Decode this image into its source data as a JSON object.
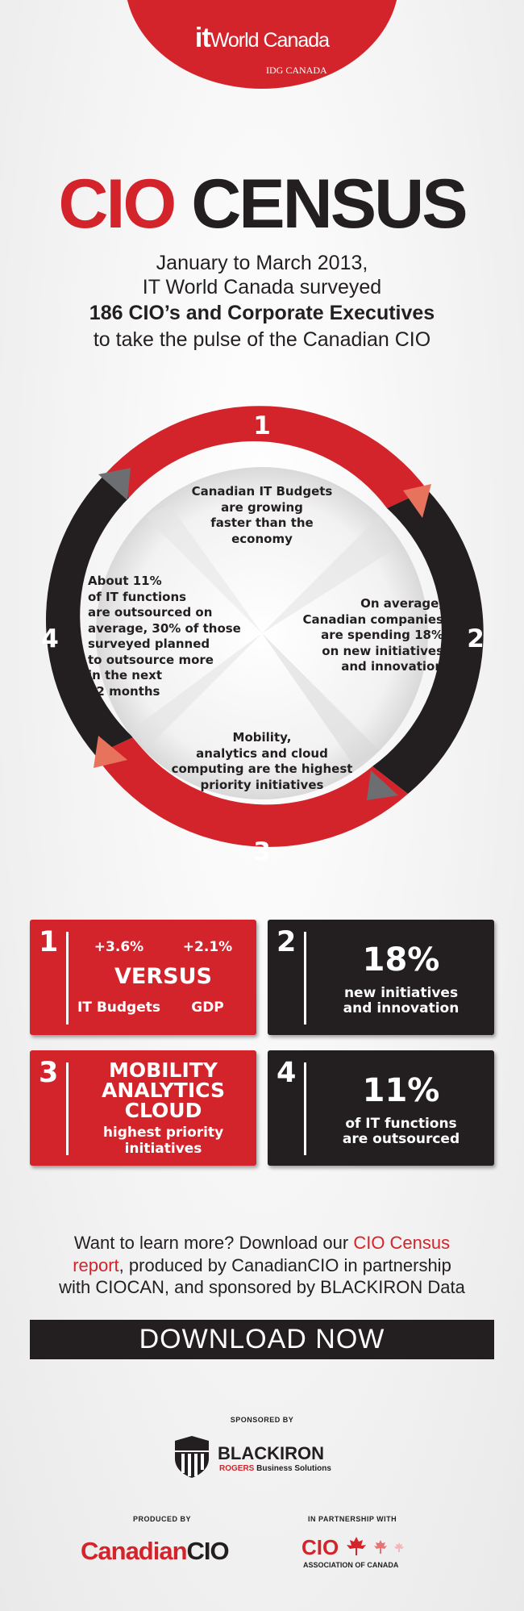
{
  "header": {
    "logo_it": "it",
    "logo_name": "World Canada",
    "logo_sub": "IDG CANADA"
  },
  "title": {
    "part1": "CIO",
    "part2": "CENSUS"
  },
  "intro": {
    "line1": "January to March 2013,",
    "line2": "IT World Canada surveyed",
    "line3": "186 CIO’s and Corporate Executives",
    "line4": "to take the pulse of the Canadian CIO"
  },
  "ring": {
    "numbers": [
      "1",
      "2",
      "3",
      "4"
    ],
    "segments": [
      {
        "lines": [
          "Canadian IT Budgets",
          "are growing",
          "faster than the",
          "economy"
        ]
      },
      {
        "lines": [
          "On average,",
          "Canadian companies",
          "are spending 18%",
          "on new initiatives",
          "and innovation"
        ]
      },
      {
        "lines": [
          "Mobility,",
          "analytics and cloud",
          "computing are the highest",
          "priority initiatives"
        ]
      },
      {
        "lines": [
          "About 11%",
          "of IT functions",
          "are outsourced on",
          "average, 30% of those",
          "surveyed planned",
          "to outsource more",
          "in the next",
          "12 months"
        ]
      }
    ],
    "colors": {
      "red": "#d3242b",
      "black": "#231f20",
      "salmon": "#e8735d"
    }
  },
  "boxes": [
    {
      "num": "1",
      "v1": "+3.6%",
      "v2": "+2.1%",
      "big": "VERSUS",
      "l1": "IT Budgets",
      "l2": "GDP"
    },
    {
      "num": "2",
      "big": "18%",
      "sub1": "new initiatives",
      "sub2": "and innovation"
    },
    {
      "num": "3",
      "b1": "MOBILITY",
      "b2": "ANALYTICS",
      "b3": "CLOUD",
      "sub1": "highest priority",
      "sub2": "initiatives"
    },
    {
      "num": "4",
      "big": "11%",
      "sub1": "of IT functions",
      "sub2": "are outsourced"
    }
  ],
  "learn_more": {
    "l1a": "Want to learn more? Download our ",
    "l1b": "CIO Census",
    "l2a": "report",
    "l2b": ", produced by CanadianCIO in partnership",
    "l3": "with CIOCAN, and sponsored by BLACKIRON Data"
  },
  "download_label": "DOWNLOAD NOW",
  "sponsors": {
    "sponsored_by": "SPONSORED BY",
    "blackiron": "BLACKIRON",
    "rogers": "ROGERS",
    "business": "Business Solutions",
    "produced_by": "PRODUCED BY",
    "canadian": "Canadian",
    "cio": "CIO",
    "partnership": "IN PARTNERSHIP WITH",
    "cio_assoc": "CIO",
    "assoc": "ASSOCIATION OF CANADA"
  }
}
